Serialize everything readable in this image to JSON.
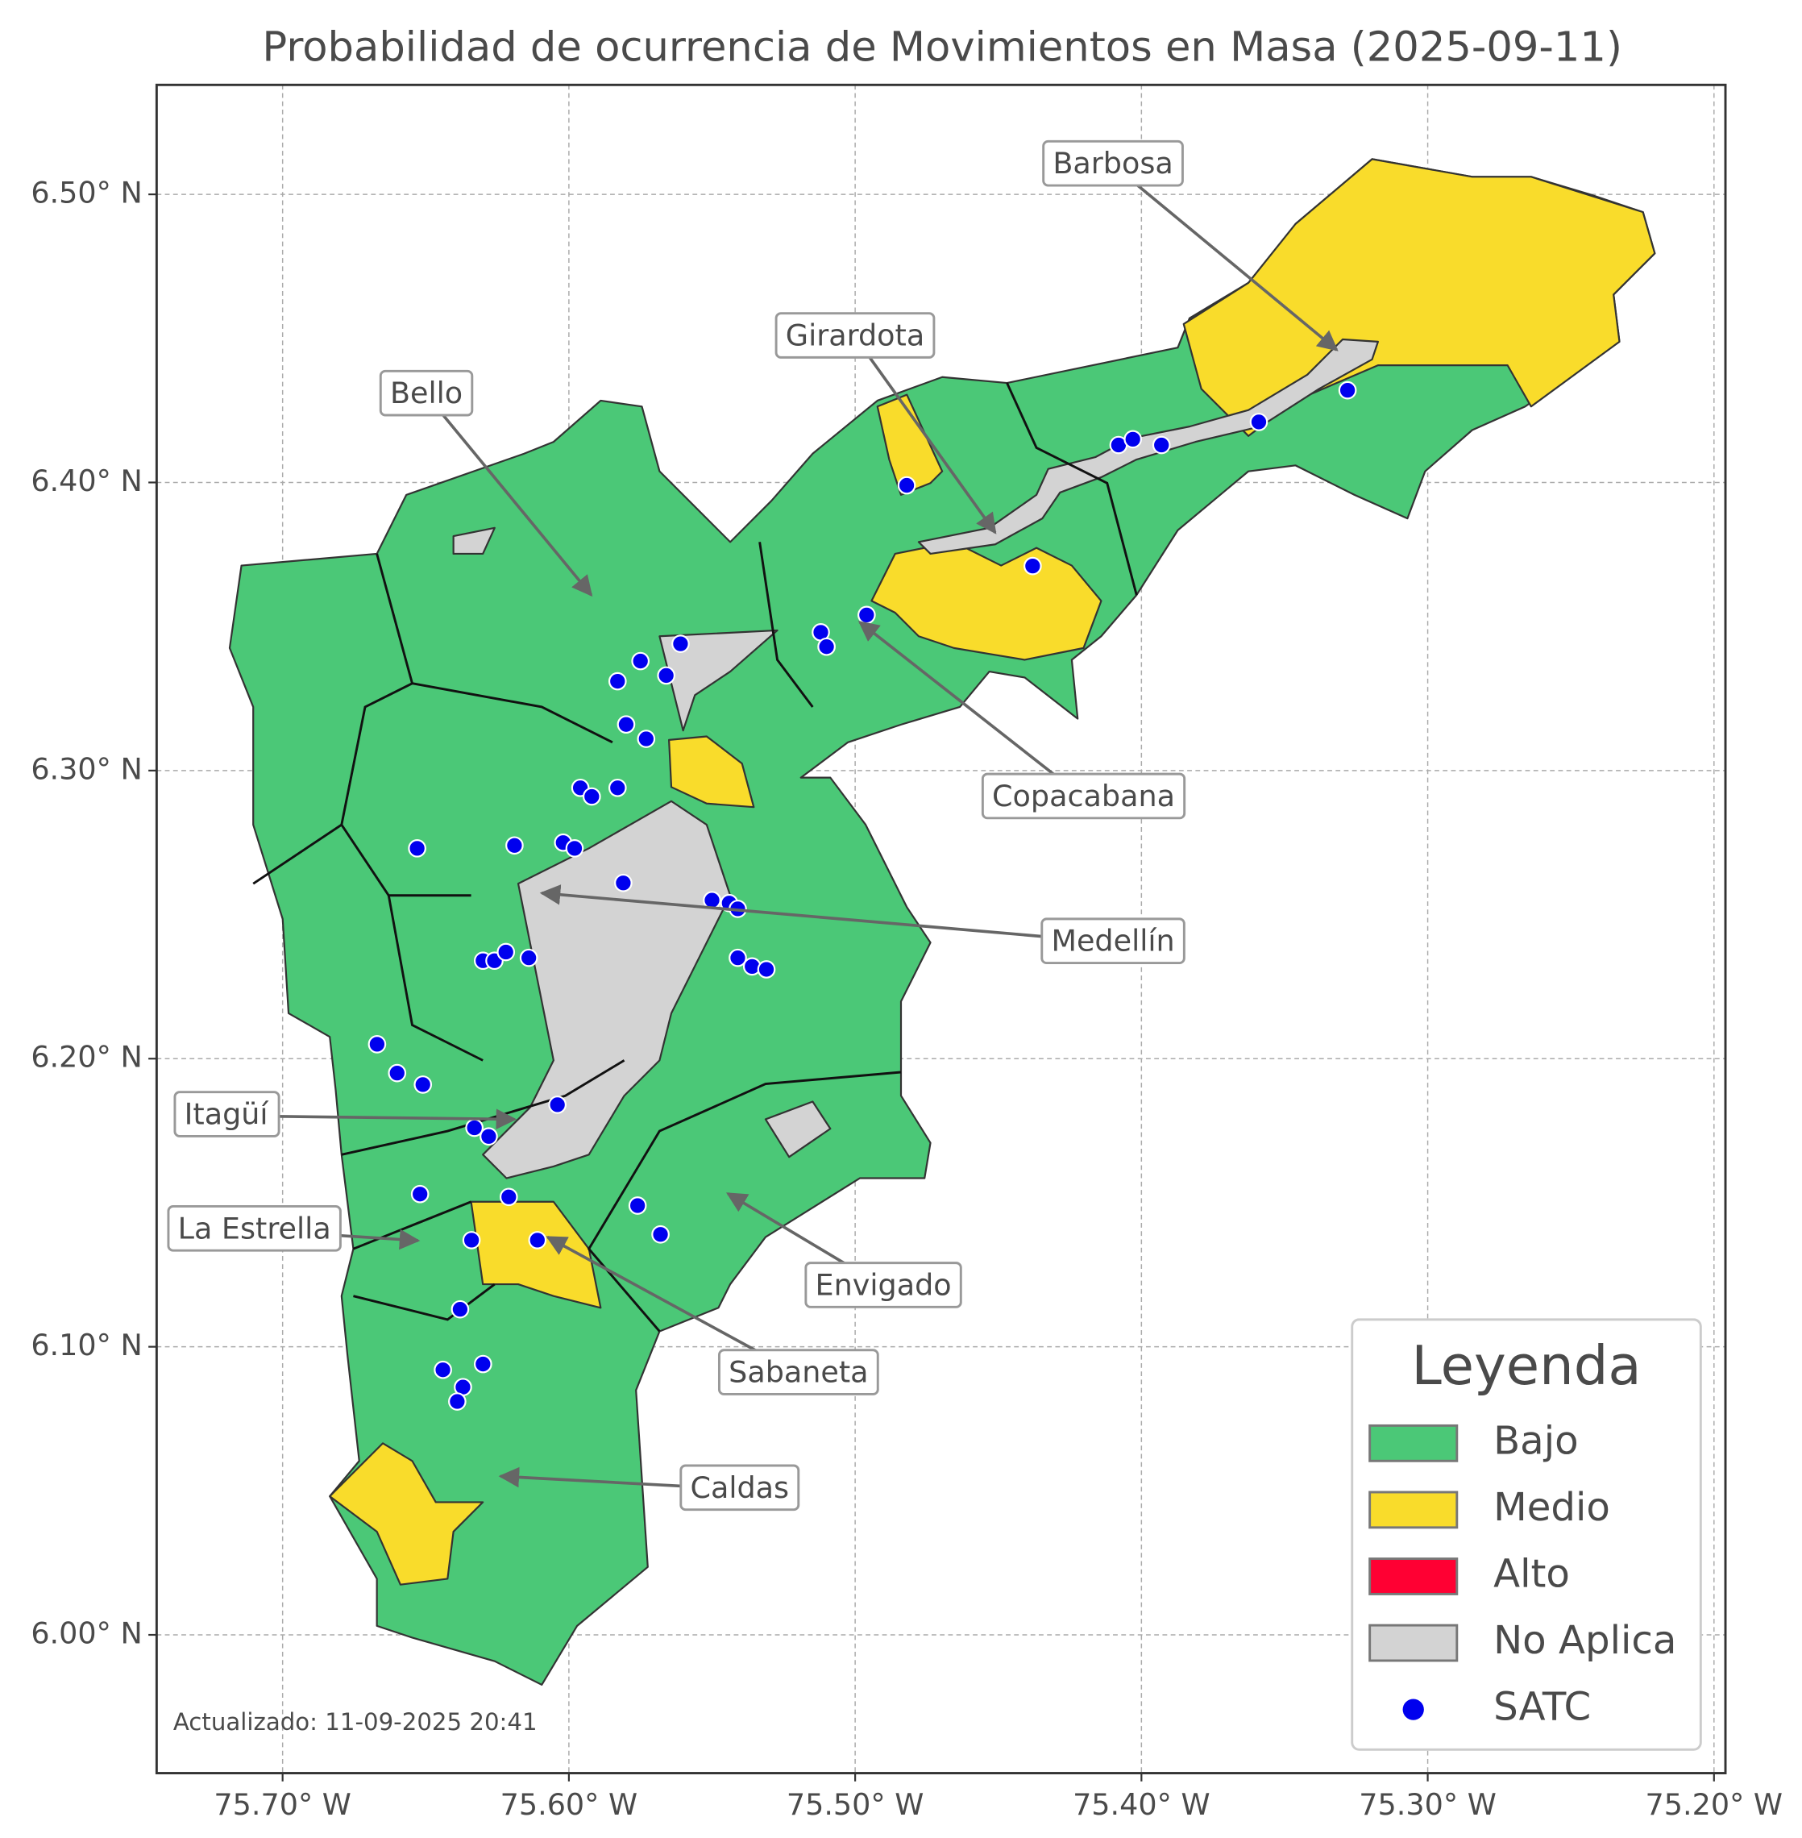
{
  "title": "Probabilidad de ocurrencia de Movimientos en Masa (2025-09-11)",
  "map": {
    "xlim": [
      -75.744,
      -75.196
    ],
    "ylim": [
      5.952,
      6.538
    ],
    "grid": true,
    "xticks": [
      {
        "value": -75.7,
        "label": "75.70° W"
      },
      {
        "value": -75.6,
        "label": "75.60° W"
      },
      {
        "value": -75.5,
        "label": "75.50° W"
      },
      {
        "value": -75.4,
        "label": "75.40° W"
      },
      {
        "value": -75.3,
        "label": "75.30° W"
      },
      {
        "value": -75.2,
        "label": "75.20° W"
      }
    ],
    "yticks": [
      {
        "value": 6.0,
        "label": "6.00° N"
      },
      {
        "value": 6.1,
        "label": "6.10° N"
      },
      {
        "value": 6.2,
        "label": "6.20° N"
      },
      {
        "value": 6.3,
        "label": "6.30° N"
      },
      {
        "value": 6.4,
        "label": "6.40° N"
      },
      {
        "value": 6.5,
        "label": "6.50° N"
      }
    ],
    "stations": {
      "color": "#0000ee",
      "lon": [
        -75.328,
        -75.359,
        -75.408,
        -75.403,
        -75.393,
        -75.482,
        -75.438,
        -75.496,
        -75.512,
        -75.51,
        -75.561,
        -75.575,
        -75.566,
        -75.583,
        -75.58,
        -75.573,
        -75.596,
        -75.583,
        -75.592,
        -75.653,
        -75.619,
        -75.602,
        -75.598,
        -75.581,
        -75.55,
        -75.544,
        -75.541,
        -75.63,
        -75.626,
        -75.622,
        -75.614,
        -75.541,
        -75.536,
        -75.531,
        -75.667,
        -75.66,
        -75.651,
        -75.604,
        -75.633,
        -75.628,
        -75.652,
        -75.621,
        -75.576,
        -75.568,
        -75.634,
        -75.611,
        -75.638,
        -75.644,
        -75.63,
        -75.637,
        -75.639
      ],
      "lat": [
        6.432,
        6.421,
        6.413,
        6.415,
        6.413,
        6.399,
        6.371,
        6.354,
        6.348,
        6.343,
        6.344,
        6.338,
        6.333,
        6.331,
        6.316,
        6.311,
        6.294,
        6.294,
        6.291,
        6.273,
        6.274,
        6.275,
        6.273,
        6.261,
        6.255,
        6.254,
        6.252,
        6.234,
        6.234,
        6.237,
        6.235,
        6.235,
        6.232,
        6.231,
        6.205,
        6.195,
        6.191,
        6.184,
        6.176,
        6.173,
        6.153,
        6.152,
        6.149,
        6.139,
        6.137,
        6.137,
        6.113,
        6.092,
        6.094,
        6.086,
        6.081
      ]
    }
  },
  "annotations": [
    "Barbosa",
    "Girardota",
    "Bello",
    "Copacabana",
    "Medellín",
    "Itagüí",
    "La Estrella",
    "Envigado",
    "Sabaneta",
    "Caldas"
  ],
  "legend": {
    "title": "Leyenda",
    "items": [
      {
        "label": "Bajo",
        "color": "#4bc877"
      },
      {
        "label": "Medio",
        "color": "#f9dc2b"
      },
      {
        "label": "Alto",
        "color": "#ff0033"
      },
      {
        "label": "No Aplica",
        "color": "#d3d3d3"
      },
      {
        "label": "SATC"
      }
    ]
  },
  "note": "Actualizado: 11-09-2025 20:41"
}
